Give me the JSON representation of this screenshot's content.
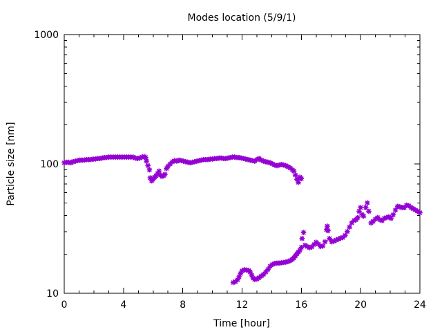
{
  "chart_data": {
    "type": "scatter",
    "title": "Modes location (5/9/1)",
    "xlabel": "Time [hour]",
    "ylabel": "Particle size [nm]",
    "xlim": [
      0,
      24
    ],
    "ylim": [
      10,
      1000
    ],
    "y_scale": "log",
    "x_ticks": [
      0,
      4,
      8,
      12,
      16,
      20,
      24
    ],
    "x_tick_labels": [
      "0",
      "4",
      "8",
      "12",
      "16",
      "20",
      "24"
    ],
    "y_ticks": [
      10,
      100,
      1000
    ],
    "y_tick_labels": [
      "10",
      "100",
      "1000"
    ],
    "grid": false,
    "legend": "none",
    "marker_color": "#9400D3",
    "series": [
      {
        "points": [
          [
            0.0,
            102
          ],
          [
            0.15,
            103
          ],
          [
            0.3,
            103
          ],
          [
            0.45,
            102
          ],
          [
            0.6,
            104
          ],
          [
            0.75,
            105
          ],
          [
            0.9,
            106
          ],
          [
            1.05,
            107
          ],
          [
            1.2,
            107
          ],
          [
            1.35,
            107
          ],
          [
            1.5,
            108
          ],
          [
            1.65,
            108
          ],
          [
            1.8,
            108
          ],
          [
            1.95,
            109
          ],
          [
            2.1,
            109
          ],
          [
            2.25,
            110
          ],
          [
            2.4,
            110
          ],
          [
            2.55,
            111
          ],
          [
            2.7,
            112
          ],
          [
            2.85,
            112
          ],
          [
            3.0,
            113
          ],
          [
            3.15,
            113
          ],
          [
            3.3,
            113
          ],
          [
            3.45,
            113
          ],
          [
            3.6,
            113
          ],
          [
            3.75,
            113
          ],
          [
            3.9,
            113
          ],
          [
            4.05,
            113
          ],
          [
            4.2,
            113
          ],
          [
            4.35,
            113
          ],
          [
            4.5,
            113
          ],
          [
            4.65,
            113
          ],
          [
            4.8,
            111
          ],
          [
            4.95,
            110
          ],
          [
            5.1,
            111
          ],
          [
            5.25,
            113
          ],
          [
            5.4,
            114
          ],
          [
            5.5,
            112
          ],
          [
            5.55,
            105
          ],
          [
            5.65,
            97
          ],
          [
            5.75,
            90
          ],
          [
            5.8,
            78
          ],
          [
            5.9,
            74
          ],
          [
            6.0,
            76
          ],
          [
            6.1,
            79
          ],
          [
            6.2,
            81
          ],
          [
            6.3,
            84
          ],
          [
            6.4,
            88
          ],
          [
            6.5,
            82
          ],
          [
            6.6,
            80
          ],
          [
            6.7,
            81
          ],
          [
            6.8,
            83
          ],
          [
            6.9,
            92
          ],
          [
            7.0,
            96
          ],
          [
            7.15,
            100
          ],
          [
            7.3,
            104
          ],
          [
            7.45,
            106
          ],
          [
            7.6,
            105
          ],
          [
            7.75,
            107
          ],
          [
            7.9,
            106
          ],
          [
            8.05,
            105
          ],
          [
            8.2,
            104
          ],
          [
            8.35,
            103
          ],
          [
            8.5,
            102
          ],
          [
            8.65,
            103
          ],
          [
            8.8,
            104
          ],
          [
            8.95,
            105
          ],
          [
            9.1,
            106
          ],
          [
            9.25,
            107
          ],
          [
            9.4,
            108
          ],
          [
            9.55,
            108
          ],
          [
            9.7,
            108
          ],
          [
            9.85,
            109
          ],
          [
            10.0,
            109
          ],
          [
            10.15,
            110
          ],
          [
            10.3,
            110
          ],
          [
            10.45,
            111
          ],
          [
            10.6,
            111
          ],
          [
            10.75,
            110
          ],
          [
            10.9,
            110
          ],
          [
            11.05,
            111
          ],
          [
            11.2,
            112
          ],
          [
            11.35,
            113
          ],
          [
            11.5,
            113
          ],
          [
            11.65,
            112
          ],
          [
            11.8,
            112
          ],
          [
            11.95,
            111
          ],
          [
            12.1,
            110
          ],
          [
            12.25,
            109
          ],
          [
            12.4,
            108
          ],
          [
            12.55,
            107
          ],
          [
            12.7,
            106
          ],
          [
            12.85,
            105
          ],
          [
            13.0,
            108
          ],
          [
            13.15,
            110
          ],
          [
            13.3,
            107
          ],
          [
            13.45,
            105
          ],
          [
            13.6,
            104
          ],
          [
            13.75,
            103
          ],
          [
            13.9,
            102
          ],
          [
            14.05,
            100
          ],
          [
            14.2,
            98
          ],
          [
            14.35,
            97
          ],
          [
            14.5,
            98
          ],
          [
            14.65,
            99
          ],
          [
            14.8,
            98
          ],
          [
            14.95,
            97
          ],
          [
            15.1,
            95
          ],
          [
            15.25,
            93
          ],
          [
            15.4,
            90
          ],
          [
            15.5,
            88
          ],
          [
            15.6,
            82
          ],
          [
            15.7,
            76
          ],
          [
            15.8,
            72
          ],
          [
            15.9,
            79
          ],
          [
            16.0,
            77
          ]
        ]
      },
      {
        "points": [
          [
            11.4,
            12.1
          ],
          [
            11.55,
            12.3
          ],
          [
            11.7,
            12.7
          ],
          [
            11.8,
            13.4
          ],
          [
            11.9,
            14.2
          ],
          [
            12.0,
            14.9
          ],
          [
            12.15,
            15.2
          ],
          [
            12.3,
            15.1
          ],
          [
            12.45,
            15.0
          ],
          [
            12.55,
            14.6
          ],
          [
            12.65,
            13.8
          ],
          [
            12.75,
            13.1
          ],
          [
            12.85,
            12.8
          ],
          [
            13.0,
            12.9
          ],
          [
            13.15,
            13.2
          ],
          [
            13.3,
            13.6
          ],
          [
            13.45,
            14.0
          ],
          [
            13.6,
            14.6
          ],
          [
            13.75,
            15.3
          ],
          [
            13.9,
            16.2
          ],
          [
            14.05,
            16.7
          ],
          [
            14.2,
            17.0
          ],
          [
            14.35,
            17.1
          ],
          [
            14.5,
            17.1
          ],
          [
            14.65,
            17.2
          ],
          [
            14.8,
            17.3
          ],
          [
            14.95,
            17.4
          ],
          [
            15.1,
            17.6
          ],
          [
            15.25,
            17.9
          ],
          [
            15.4,
            18.3
          ],
          [
            15.5,
            18.8
          ],
          [
            15.6,
            19.5
          ],
          [
            15.7,
            20.2
          ],
          [
            15.8,
            20.8
          ],
          [
            15.9,
            21.5
          ],
          [
            16.0,
            22.6
          ],
          [
            16.05,
            26.5
          ],
          [
            16.15,
            29.5
          ],
          [
            16.25,
            23.5
          ],
          [
            16.4,
            23.0
          ],
          [
            16.55,
            22.5
          ],
          [
            16.7,
            22.8
          ],
          [
            16.85,
            23.8
          ],
          [
            17.0,
            24.8
          ],
          [
            17.15,
            24.0
          ],
          [
            17.3,
            23.0
          ],
          [
            17.45,
            23.2
          ],
          [
            17.6,
            25.0
          ],
          [
            17.7,
            31.0
          ],
          [
            17.75,
            33.0
          ],
          [
            17.8,
            30.5
          ],
          [
            17.9,
            26.5
          ],
          [
            18.05,
            25.0
          ],
          [
            18.2,
            25.3
          ],
          [
            18.35,
            25.8
          ],
          [
            18.5,
            26.2
          ],
          [
            18.65,
            26.7
          ],
          [
            18.8,
            27.0
          ],
          [
            18.95,
            28.0
          ],
          [
            19.1,
            30.0
          ],
          [
            19.25,
            32.5
          ],
          [
            19.4,
            35.0
          ],
          [
            19.55,
            36.5
          ],
          [
            19.7,
            37.0
          ],
          [
            19.8,
            38.5
          ],
          [
            19.9,
            43.0
          ],
          [
            20.0,
            46.0
          ],
          [
            20.1,
            40.5
          ],
          [
            20.2,
            39.5
          ],
          [
            20.35,
            46.0
          ],
          [
            20.45,
            50.0
          ],
          [
            20.55,
            43.0
          ],
          [
            20.7,
            35.0
          ],
          [
            20.85,
            36.0
          ],
          [
            21.0,
            37.5
          ],
          [
            21.15,
            38.5
          ],
          [
            21.3,
            37.0
          ],
          [
            21.45,
            36.5
          ],
          [
            21.6,
            38.0
          ],
          [
            21.75,
            38.5
          ],
          [
            21.9,
            39.0
          ],
          [
            22.05,
            38.0
          ],
          [
            22.2,
            40.5
          ],
          [
            22.35,
            44.0
          ],
          [
            22.5,
            47.0
          ],
          [
            22.65,
            46.5
          ],
          [
            22.8,
            46.0
          ],
          [
            22.95,
            46.0
          ],
          [
            23.1,
            48.0
          ],
          [
            23.25,
            47.5
          ],
          [
            23.4,
            46.0
          ],
          [
            23.55,
            45.0
          ],
          [
            23.7,
            44.0
          ],
          [
            23.85,
            43.0
          ],
          [
            24.0,
            42.0
          ]
        ]
      }
    ]
  }
}
